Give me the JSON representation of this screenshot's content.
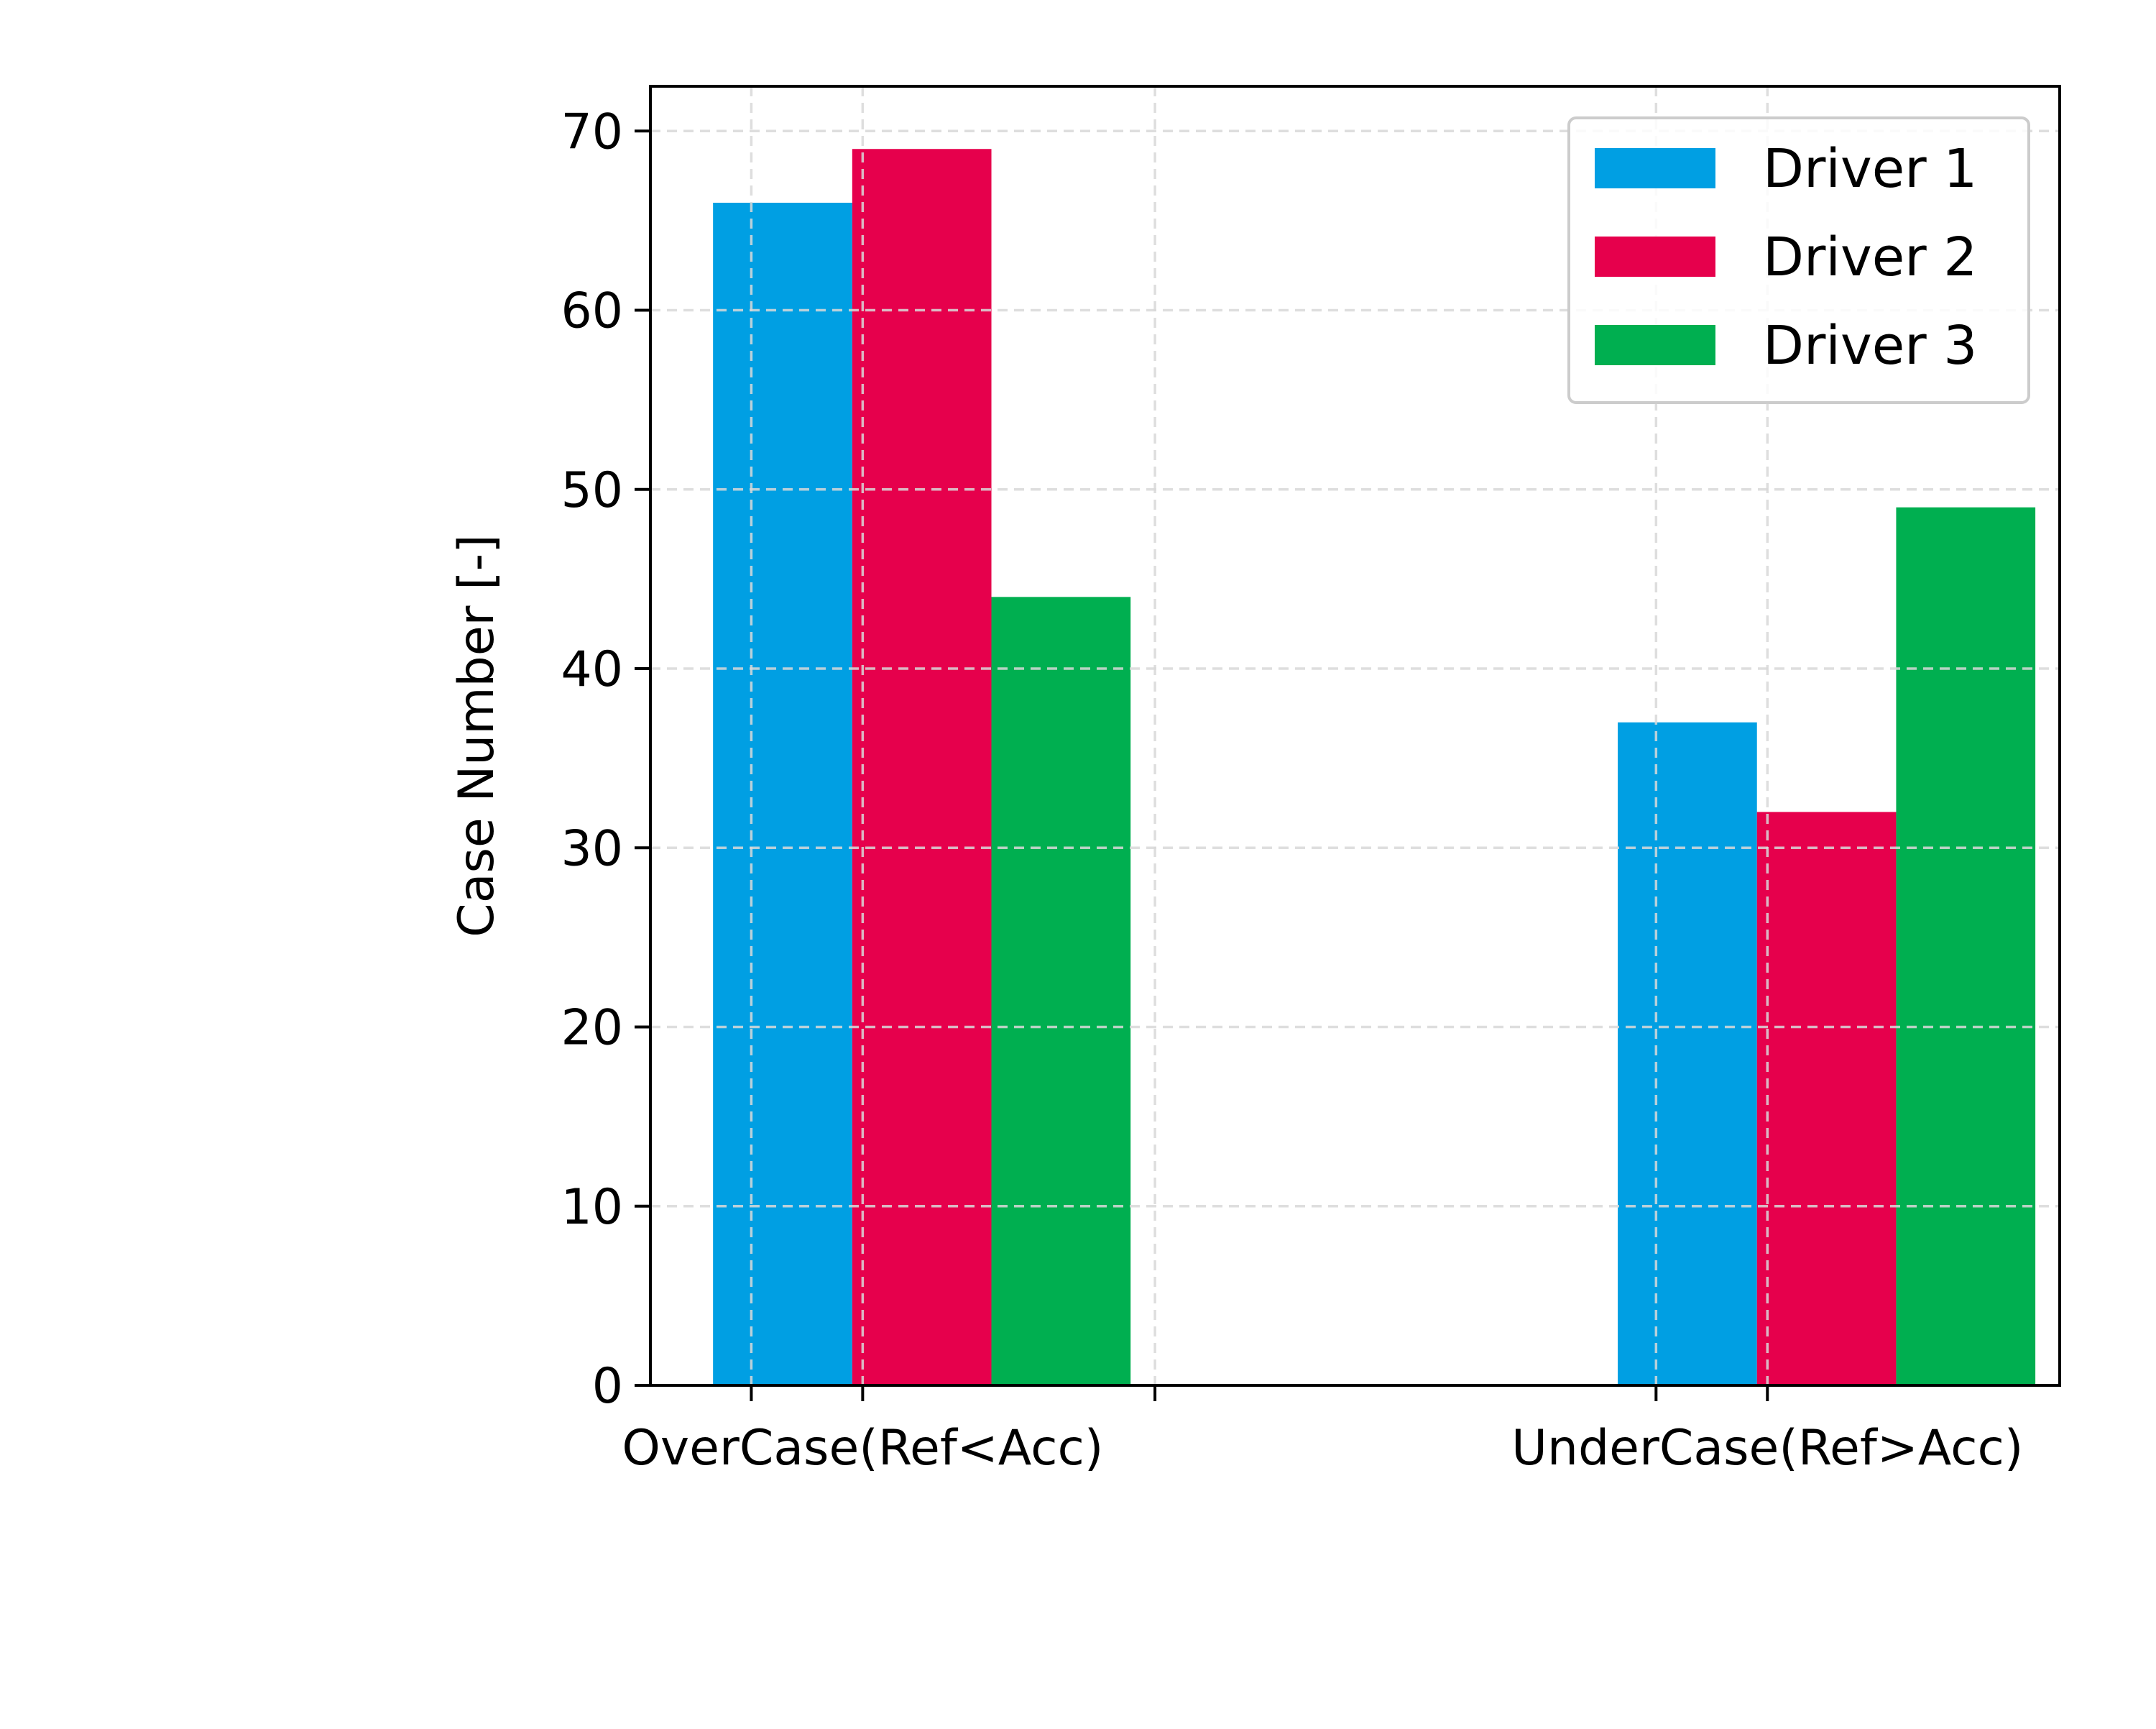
{
  "chart_data": {
    "type": "bar",
    "ylabel": "Case Number [-]",
    "xlabel": "",
    "ylim": [
      0,
      72.5
    ],
    "yticks": [
      0,
      10,
      20,
      30,
      40,
      50,
      60,
      70
    ],
    "xlim": [
      -0.45,
      3.6
    ],
    "x_tick_positions": [
      -0.16,
      0.16,
      1.0,
      2.44,
      2.76
    ],
    "x_tick_labels": [
      {
        "text": "OverCase(Ref<Acc)",
        "at": 0.16
      },
      {
        "text": "UnderCase(Ref>Acc)",
        "at": 2.76
      }
    ],
    "grid": true,
    "legend_position": "top-right",
    "bar_width": 0.4,
    "groups": [
      {
        "name": "OverCase(Ref<Acc)",
        "start": -0.27
      },
      {
        "name": "UnderCase(Ref>Acc)",
        "start": 2.33
      }
    ],
    "series": [
      {
        "name": "Driver 1",
        "color": "#009fe3",
        "values": [
          66,
          37
        ]
      },
      {
        "name": "Driver 2",
        "color": "#e6004c",
        "values": [
          69,
          32
        ]
      },
      {
        "name": "Driver 3",
        "color": "#00af50",
        "values": [
          44,
          49
        ]
      }
    ]
  }
}
